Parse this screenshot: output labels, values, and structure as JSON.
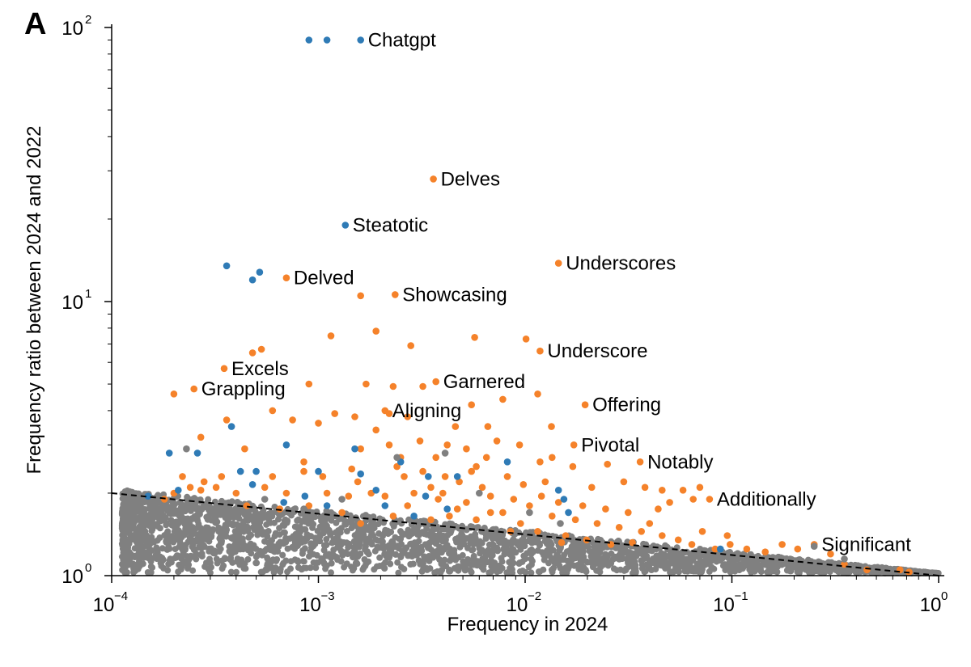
{
  "panel_label": "A",
  "chart_data": {
    "type": "scatter",
    "xlabel": "Frequency in 2024",
    "ylabel": "Frequency ratio between 2024 and 2022",
    "xscale": "log",
    "yscale": "log",
    "xlim": [
      0.0001,
      1
    ],
    "ylim": [
      1,
      100
    ],
    "grid": false,
    "x_ticks": [
      {
        "value": 0.0001,
        "base": "10",
        "exp": "−4"
      },
      {
        "value": 0.001,
        "base": "10",
        "exp": "−3"
      },
      {
        "value": 0.01,
        "base": "10",
        "exp": "−2"
      },
      {
        "value": 0.1,
        "base": "10",
        "exp": "−1"
      },
      {
        "value": 1,
        "base": "10",
        "exp": "0"
      }
    ],
    "y_ticks": [
      {
        "value": 1,
        "base": "10",
        "exp": "0"
      },
      {
        "value": 10,
        "base": "10",
        "exp": "1"
      },
      {
        "value": 100,
        "base": "10",
        "exp": "2"
      }
    ],
    "colors": {
      "orange": "#f5822a",
      "blue": "#2f7bb6",
      "gray": "#808080"
    },
    "reference_line": {
      "style": "dashed",
      "color": "#000000",
      "points": [
        [
          0.0001,
          2.0
        ],
        [
          1,
          1.0
        ]
      ]
    },
    "annotations": [
      {
        "text": "Chatgpt",
        "x": 0.0016,
        "y": 90
      },
      {
        "text": "Delves",
        "x": 0.0036,
        "y": 28
      },
      {
        "text": "Steatotic",
        "x": 0.00135,
        "y": 19
      },
      {
        "text": "Underscores",
        "x": 0.0145,
        "y": 13.8
      },
      {
        "text": "Delved",
        "x": 0.0007,
        "y": 12.2
      },
      {
        "text": "Showcasing",
        "x": 0.00235,
        "y": 10.6
      },
      {
        "text": "Underscore",
        "x": 0.0118,
        "y": 6.6
      },
      {
        "text": "Excels",
        "x": 0.00035,
        "y": 5.7
      },
      {
        "text": "Garnered",
        "x": 0.0037,
        "y": 5.1
      },
      {
        "text": "Grappling",
        "x": 0.00025,
        "y": 4.8
      },
      {
        "text": "Aligning",
        "x": 0.0021,
        "y": 4.0
      },
      {
        "text": "Offering",
        "x": 0.0195,
        "y": 4.2
      },
      {
        "text": "Pivotal",
        "x": 0.0172,
        "y": 3.0
      },
      {
        "text": "Notably",
        "x": 0.036,
        "y": 2.6
      },
      {
        "text": "Additionally",
        "x": 0.078,
        "y": 1.9
      },
      {
        "text": "Significant",
        "x": 0.25,
        "y": 1.3
      }
    ],
    "series": [
      {
        "color": "orange",
        "points": [
          [
            0.0036,
            28
          ],
          [
            0.0145,
            13.8
          ],
          [
            0.0007,
            12.2
          ],
          [
            0.00235,
            10.6
          ],
          [
            0.0016,
            10.5
          ],
          [
            0.0118,
            6.6
          ],
          [
            0.00035,
            5.7
          ],
          [
            0.0037,
            5.1
          ],
          [
            0.00025,
            4.8
          ],
          [
            0.0021,
            4.0
          ],
          [
            0.0195,
            4.2
          ],
          [
            0.0172,
            3.0
          ],
          [
            0.036,
            2.6
          ],
          [
            0.078,
            1.9
          ],
          [
            0.00115,
            7.5
          ],
          [
            0.0019,
            7.8
          ],
          [
            0.0057,
            7.4
          ],
          [
            0.0101,
            7.3
          ],
          [
            0.00053,
            6.7
          ],
          [
            0.00048,
            6.5
          ],
          [
            0.0028,
            6.9
          ],
          [
            0.0009,
            5.0
          ],
          [
            0.0002,
            4.6
          ],
          [
            0.0017,
            5.0
          ],
          [
            0.0023,
            4.9
          ],
          [
            0.0032,
            4.9
          ],
          [
            0.0078,
            4.4
          ],
          [
            0.0115,
            4.6
          ],
          [
            0.0055,
            4.2
          ],
          [
            0.0006,
            4.0
          ],
          [
            0.0012,
            3.9
          ],
          [
            0.0015,
            3.8
          ],
          [
            0.0027,
            3.8
          ],
          [
            0.00075,
            3.7
          ],
          [
            0.001,
            3.6
          ],
          [
            0.0046,
            3.5
          ],
          [
            0.0066,
            3.5
          ],
          [
            0.0134,
            3.5
          ],
          [
            0.00036,
            3.7
          ],
          [
            0.00027,
            3.2
          ],
          [
            0.0031,
            3.1
          ],
          [
            0.0042,
            3.0
          ],
          [
            0.0022,
            3.0
          ],
          [
            0.0094,
            3.0
          ],
          [
            0.0016,
            2.9
          ],
          [
            0.00044,
            2.9
          ],
          [
            0.0025,
            2.7
          ],
          [
            0.0065,
            2.7
          ],
          [
            0.0118,
            2.6
          ],
          [
            0.017,
            2.5
          ],
          [
            0.025,
            2.55
          ],
          [
            0.0058,
            2.5
          ],
          [
            0.00085,
            2.6
          ],
          [
            0.00022,
            2.3
          ],
          [
            0.0026,
            2.3
          ],
          [
            0.0041,
            2.3
          ],
          [
            0.0055,
            2.4
          ],
          [
            0.0082,
            2.3
          ],
          [
            0.0125,
            2.2
          ],
          [
            0.0048,
            2.2
          ],
          [
            0.0035,
            2.1
          ],
          [
            0.021,
            2.1
          ],
          [
            0.03,
            2.2
          ],
          [
            0.038,
            2.1
          ],
          [
            0.046,
            2.05
          ],
          [
            0.058,
            2.05
          ],
          [
            0.07,
            2.1
          ],
          [
            0.065,
            1.9
          ],
          [
            0.05,
            1.85
          ],
          [
            0.044,
            1.75
          ],
          [
            0.0002,
            2.0
          ],
          [
            0.00024,
            2.1
          ],
          [
            0.00028,
            2.2
          ],
          [
            0.00032,
            2.1
          ],
          [
            0.0004,
            2.0
          ],
          [
            0.00055,
            2.1
          ],
          [
            0.0007,
            2.0
          ],
          [
            0.0011,
            2.0
          ],
          [
            0.0014,
            1.95
          ],
          [
            0.0018,
            2.0
          ],
          [
            0.0021,
            1.95
          ],
          [
            0.0029,
            2.0
          ],
          [
            0.0038,
            1.9
          ],
          [
            0.0052,
            1.85
          ],
          [
            0.0068,
            1.95
          ],
          [
            0.0088,
            1.9
          ],
          [
            0.0105,
            1.8
          ],
          [
            0.0145,
            1.85
          ],
          [
            0.019,
            1.8
          ],
          [
            0.0245,
            1.75
          ],
          [
            0.0315,
            1.7
          ],
          [
            0.0027,
            1.8
          ],
          [
            0.0047,
            1.75
          ],
          [
            0.0078,
            1.7
          ],
          [
            0.0135,
            1.65
          ],
          [
            0.0175,
            1.6
          ],
          [
            0.0223,
            1.55
          ],
          [
            0.0285,
            1.5
          ],
          [
            0.0365,
            1.45
          ],
          [
            0.046,
            1.4
          ],
          [
            0.055,
            1.35
          ],
          [
            0.064,
            1.3
          ],
          [
            0.083,
            1.25
          ],
          [
            0.098,
            1.3
          ],
          [
            0.118,
            1.25
          ],
          [
            0.145,
            1.22
          ],
          [
            0.175,
            1.3
          ],
          [
            0.208,
            1.25
          ],
          [
            0.25,
            1.3
          ],
          [
            0.3,
            1.2
          ],
          [
            0.35,
            1.1
          ],
          [
            0.45,
            1.05
          ],
          [
            0.65,
            1.05
          ],
          [
            0.72,
            1.03
          ],
          [
            0.095,
            1.4
          ],
          [
            0.072,
            1.45
          ],
          [
            0.04,
            1.55
          ],
          [
            0.0035,
            1.6
          ],
          [
            0.0058,
            1.6
          ],
          [
            0.0095,
            1.55
          ],
          [
            0.0013,
            1.7
          ],
          [
            0.0009,
            1.8
          ],
          [
            0.00065,
            1.75
          ],
          [
            0.00045,
            1.8
          ],
          [
            0.0023,
            1.65
          ],
          [
            0.0016,
            1.55
          ],
          [
            0.0115,
            1.45
          ],
          [
            0.0157,
            1.4
          ],
          [
            0.0198,
            1.35
          ],
          [
            0.026,
            1.3
          ],
          [
            0.033,
            1.32
          ],
          [
            0.015,
            1.32
          ],
          [
            0.0085,
            1.45
          ],
          [
            0.00018,
            1.9
          ],
          [
            0.00034,
            2.3
          ],
          [
            0.00027,
            2.05
          ],
          [
            0.00105,
            2.3
          ],
          [
            0.00155,
            2.2
          ],
          [
            0.0024,
            2.5
          ],
          [
            0.0037,
            2.7
          ],
          [
            0.0052,
            2.9
          ],
          [
            0.0135,
            2.7
          ],
          [
            0.0073,
            3.1
          ],
          [
            0.0019,
            3.4
          ],
          [
            0.0022,
            3.9
          ],
          [
            0.00085,
            2.4
          ],
          [
            0.0006,
            2.3
          ],
          [
            0.004,
            2.0
          ],
          [
            0.0062,
            2.1
          ],
          [
            0.0098,
            2.15
          ],
          [
            0.0043,
            1.65
          ],
          [
            0.0068,
            1.7
          ],
          [
            0.012,
            1.95
          ],
          [
            0.0032,
            2.4
          ],
          [
            0.00145,
            2.45
          ]
        ]
      },
      {
        "color": "blue",
        "points": [
          [
            0.0009,
            90
          ],
          [
            0.0011,
            90
          ],
          [
            0.0016,
            90
          ],
          [
            0.00135,
            19
          ],
          [
            0.00036,
            13.5
          ],
          [
            0.00048,
            12
          ],
          [
            0.00052,
            12.8
          ],
          [
            0.00019,
            2.8
          ],
          [
            0.00026,
            2.8
          ],
          [
            0.00038,
            3.5
          ],
          [
            0.0007,
            3.0
          ],
          [
            0.0015,
            2.9
          ],
          [
            0.0025,
            2.6
          ],
          [
            0.0082,
            2.6
          ],
          [
            0.00042,
            2.4
          ],
          [
            0.0005,
            2.4
          ],
          [
            0.001,
            2.4
          ],
          [
            0.0016,
            2.35
          ],
          [
            0.0034,
            2.3
          ],
          [
            0.0047,
            2.3
          ],
          [
            0.0145,
            2.05
          ],
          [
            0.0154,
            1.9
          ],
          [
            0.00068,
            1.85
          ],
          [
            0.0011,
            1.8
          ],
          [
            0.0021,
            1.8
          ],
          [
            0.0029,
            1.65
          ],
          [
            0.0042,
            1.75
          ],
          [
            0.0162,
            1.7
          ],
          [
            0.088,
            1.25
          ],
          [
            0.00015,
            1.95
          ],
          [
            0.00021,
            2.05
          ],
          [
            0.00048,
            2.15
          ],
          [
            0.00086,
            1.95
          ],
          [
            0.0019,
            2.05
          ],
          [
            0.0033,
            1.95
          ]
        ]
      },
      {
        "color": "gray",
        "points": [
          [
            0.00023,
            2.9
          ],
          [
            0.00055,
            1.9
          ],
          [
            0.0013,
            1.9
          ],
          [
            0.0024,
            2.7
          ],
          [
            0.0041,
            2.8
          ],
          [
            0.006,
            2.0
          ],
          [
            0.0105,
            1.7
          ],
          [
            0.0148,
            1.55
          ],
          [
            0.00085,
            1.75
          ],
          [
            0.0018,
            1.6
          ],
          [
            0.25,
            1.28
          ],
          [
            0.35,
            1.15
          ],
          [
            0.2,
            1.1
          ]
        ]
      }
    ]
  }
}
